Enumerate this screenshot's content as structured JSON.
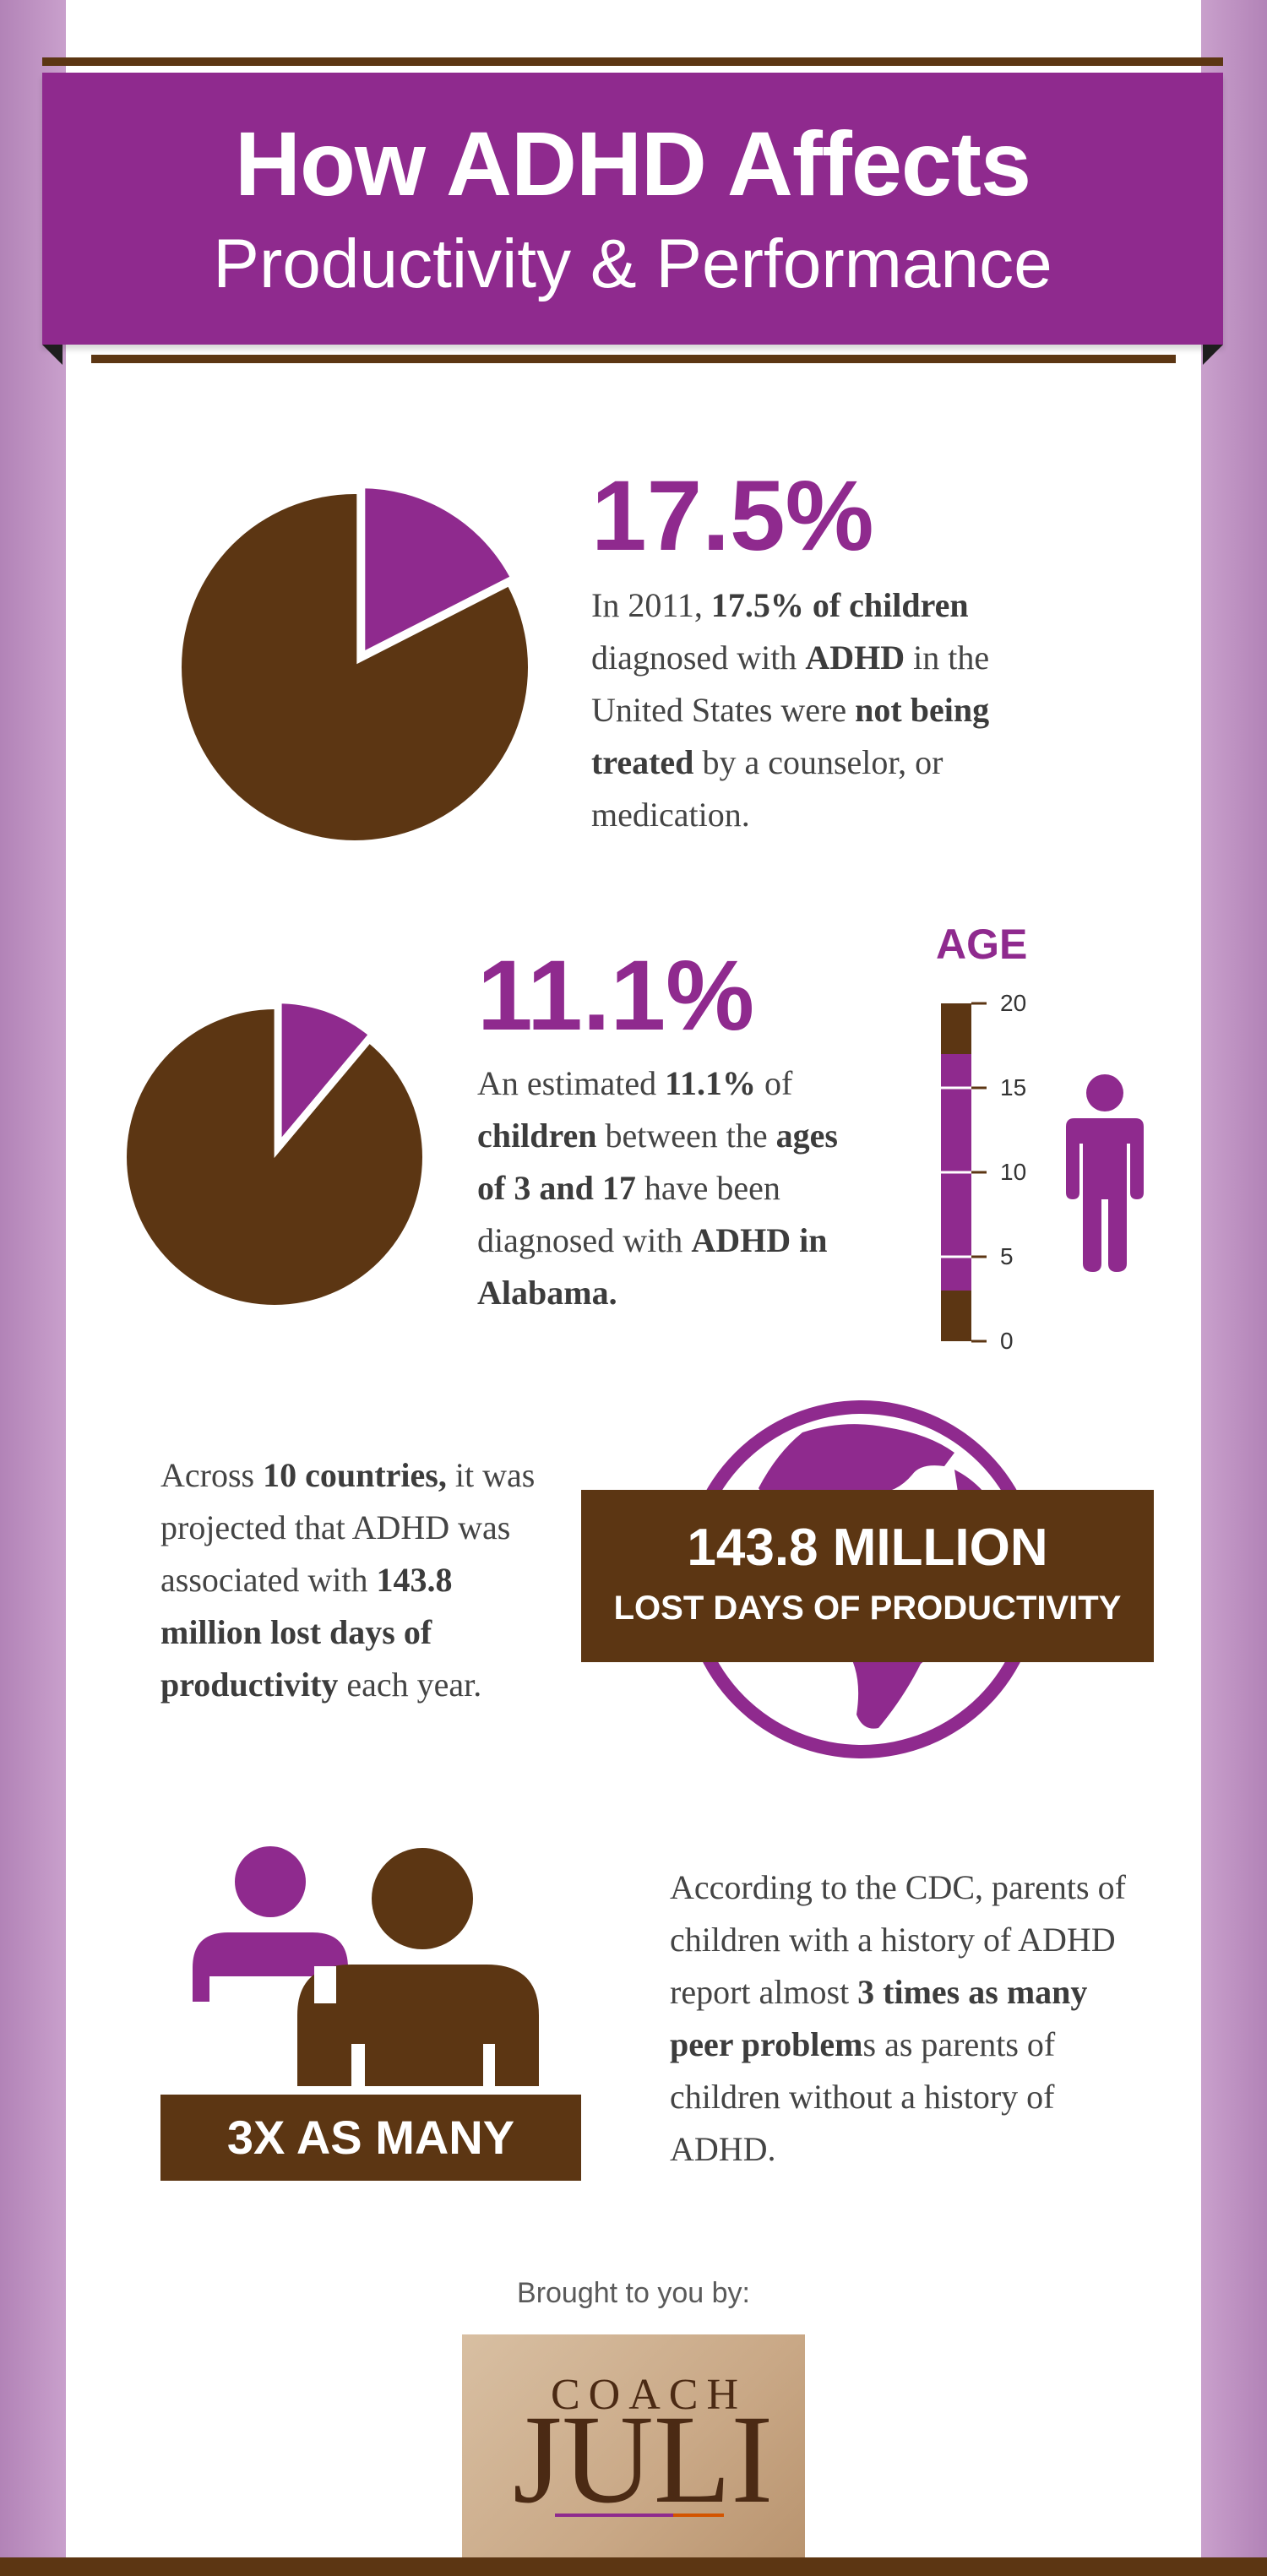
{
  "header": {
    "title_line1": "How ADHD Affects",
    "title_line2": "Productivity & Performance"
  },
  "stat1": {
    "percent": "17.5%",
    "pie_fraction": 0.175,
    "text": {
      "p1": "In 2011,",
      "b1": "17.5% of children",
      "p2": "diagnosed with",
      "b2": "ADHD",
      "p3": "in the United States were",
      "b3": "not being treated",
      "p4": "by a counselor, or medication."
    }
  },
  "stat2": {
    "percent": "11.1%",
    "pie_fraction": 0.111,
    "text": {
      "p1": "An estimated",
      "b1": "11.1%",
      "p2": "of",
      "b2": "children",
      "p3": "between the",
      "b3": "ages of 3 and 17",
      "p4": "have been diagnosed with",
      "b4": "ADHD in Alabama."
    },
    "age_gauge": {
      "label": "AGE",
      "ticks": [
        "20",
        "15",
        "10",
        "5",
        "0"
      ],
      "range_min": 3,
      "range_max": 17,
      "scale_max": 20
    }
  },
  "stat3": {
    "text": {
      "p1": "Across",
      "b1": "10 countries,",
      "p2": "it was projected that ADHD was associated with",
      "b2": "143.8 million lost days of productivity",
      "p3": "each year."
    },
    "box_line1": "143.8 MILLION",
    "box_line2": "LOST DAYS OF PRODUCTIVITY"
  },
  "stat4": {
    "box_label": "3X AS MANY",
    "text": {
      "p1": "According to the CDC, parents of children with a history of ADHD report almost",
      "b1": "3 times as many peer problem",
      "p2": "s as parents of children without a history of ADHD."
    }
  },
  "footer": {
    "brought_by": "Brought to you by:",
    "logo_text_top": "COACH",
    "logo_text_main": "JULI"
  },
  "colors": {
    "purple": "#8f2a8e",
    "brown": "#5c3613",
    "text": "#444444"
  }
}
